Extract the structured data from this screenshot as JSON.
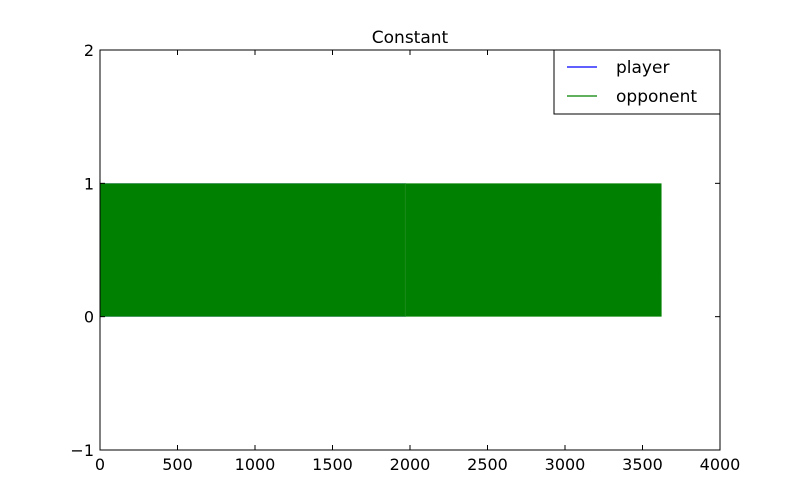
{
  "chart_data": {
    "type": "line",
    "title": "Constant",
    "xlabel": "",
    "ylabel": "",
    "xlim": [
      0,
      4000
    ],
    "ylim": [
      -1,
      2
    ],
    "x_ticks": [
      "0",
      "500",
      "1000",
      "1500",
      "2000",
      "2500",
      "3000",
      "3500",
      "4000"
    ],
    "y_ticks": [
      "−1",
      "0",
      "1",
      "2"
    ],
    "grid": false,
    "legend_position": "top-right",
    "series": [
      {
        "name": "player",
        "color": "#0000ff",
        "description_values": {
          "x_range": [
            0,
            1970
          ],
          "values_between": [
            0,
            1
          ]
        }
      },
      {
        "name": "opponent",
        "color": "#008000",
        "description_values": {
          "x_range": [
            0,
            3620
          ],
          "values_between": [
            0,
            1
          ]
        }
      }
    ]
  }
}
